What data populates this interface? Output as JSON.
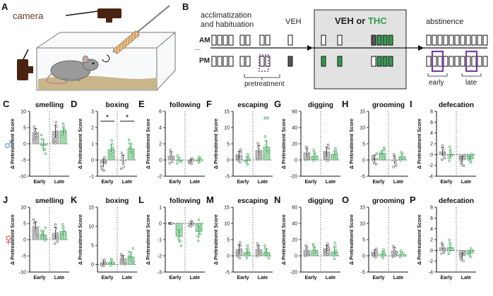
{
  "panel_a": {
    "letter": "A",
    "camera_label": "camera"
  },
  "panel_b": {
    "letter": "B",
    "acclimatization_line1": "acclimatization",
    "acclimatization_line2": "and habituation",
    "veh_label": "VEH",
    "treatment_veh": "VEH",
    "treatment_or": " or ",
    "treatment_thc": "THC",
    "abstinence_label": "abstinence",
    "am_label": "AM",
    "pm_label": "PM",
    "ellipsis": "...",
    "pretreatment_label": "pretreatment",
    "early_label": "early",
    "late_label": "late"
  },
  "sex_symbols": {
    "male": "♂",
    "female": "♀"
  },
  "colors": {
    "veh_gray": "#bdbdbd",
    "thc_green": "#2e9d4a",
    "thc_green_light": "#a6d8b0",
    "pretreatment_purple": "#7b3fa0",
    "camera_brown": "#4a2410",
    "bedding": "#c9b68a"
  },
  "chart_data": [
    {
      "panel": "C",
      "title": "smelling",
      "ylabel": "Δ Pretreatment Score",
      "ylim": [
        -10,
        10
      ],
      "yticks": [
        -10,
        -5,
        0,
        5,
        10
      ],
      "categories": [
        "Early",
        "Late"
      ],
      "series": [
        {
          "values": [
            3.5,
            3.8
          ]
        },
        {
          "values": [
            -0.5,
            4.0
          ]
        }
      ],
      "errors": [
        [
          1.2,
          2.0
        ],
        [
          1.8,
          1.2
        ]
      ],
      "annotations": []
    },
    {
      "panel": "D",
      "title": "boxing",
      "ylabel": "Δ Pretreatment Score",
      "ylim": [
        -1,
        3
      ],
      "yticks": [
        -1,
        0,
        1,
        2,
        3
      ],
      "categories": [
        "Early",
        "Late"
      ],
      "series": [
        {
          "values": [
            -0.2,
            0.0
          ]
        },
        {
          "values": [
            0.65,
            0.7
          ]
        }
      ],
      "errors": [
        [
          0.25,
          0.3
        ],
        [
          0.3,
          0.3
        ]
      ],
      "annotations": [
        "*",
        "*"
      ]
    },
    {
      "panel": "E",
      "title": "following",
      "ylabel": "Δ Pretreatment Score",
      "ylim": [
        -2,
        6
      ],
      "yticks": [
        -2,
        0,
        2,
        4,
        6
      ],
      "categories": [
        "Early",
        "Late"
      ],
      "series": [
        {
          "values": [
            0.5,
            -0.1
          ]
        },
        {
          "values": [
            0.0,
            0.0
          ]
        }
      ],
      "errors": [
        [
          0.5,
          0.2
        ],
        [
          0.3,
          0.2
        ]
      ],
      "annotations": []
    },
    {
      "panel": "F",
      "title": "escaping",
      "ylabel": "Δ Pretreatment Score",
      "ylim": [
        -5,
        15
      ],
      "yticks": [
        -5,
        0,
        5,
        10,
        15
      ],
      "categories": [
        "Early",
        "Late"
      ],
      "series": [
        {
          "values": [
            1.5,
            3.0
          ]
        },
        {
          "values": [
            0.0,
            4.0
          ]
        }
      ],
      "errors": [
        [
          1.2,
          1.5
        ],
        [
          1.0,
          1.8
        ]
      ],
      "annotations": [
        "##"
      ]
    },
    {
      "panel": "G",
      "title": "digging",
      "ylabel": "Δ Pretreatment Score",
      "ylim": [
        -20,
        60
      ],
      "yticks": [
        -20,
        0,
        20,
        40,
        60
      ],
      "categories": [
        "Early",
        "Late"
      ],
      "series": [
        {
          "values": [
            9,
            10
          ]
        },
        {
          "values": [
            5,
            7
          ]
        }
      ],
      "errors": [
        [
          5,
          6
        ],
        [
          4,
          4
        ]
      ],
      "annotations": []
    },
    {
      "panel": "H",
      "title": "grooming",
      "ylabel": "Δ Pretreatment Score",
      "ylim": [
        -5,
        15
      ],
      "yticks": [
        -5,
        0,
        5,
        10,
        15
      ],
      "categories": [
        "Early",
        "Late"
      ],
      "series": [
        {
          "values": [
            0.5,
            0.0
          ]
        },
        {
          "values": [
            2.0,
            1.0
          ]
        }
      ],
      "errors": [
        [
          1.0,
          1.2
        ],
        [
          1.0,
          0.8
        ]
      ],
      "annotations": []
    },
    {
      "panel": "I",
      "title": "defecation",
      "ylabel": "Δ Pretreatment Score",
      "ylim": [
        -4,
        8
      ],
      "yticks": [
        -4,
        -2,
        0,
        2,
        4,
        6,
        8
      ],
      "categories": [
        "Early",
        "Late"
      ],
      "series": [
        {
          "values": [
            0.5,
            -1.0
          ]
        },
        {
          "values": [
            0.0,
            -0.8
          ]
        }
      ],
      "errors": [
        [
          0.8,
          0.6
        ],
        [
          0.8,
          0.5
        ]
      ],
      "annotations": []
    },
    {
      "panel": "J",
      "title": "smelling",
      "ylabel": "Δ Pretreatment Score",
      "ylim": [
        -10,
        10
      ],
      "yticks": [
        -10,
        -5,
        0,
        5,
        10
      ],
      "categories": [
        "Early",
        "Late"
      ],
      "series": [
        {
          "values": [
            4.0,
            2.0
          ]
        },
        {
          "values": [
            1.5,
            2.5
          ]
        }
      ],
      "errors": [
        [
          1.5,
          1.8
        ],
        [
          1.2,
          1.2
        ]
      ],
      "annotations": []
    },
    {
      "panel": "K",
      "title": "boxing",
      "ylabel": "Δ Pretreatment Score",
      "ylim": [
        -2,
        15
      ],
      "yticks": [
        0,
        5,
        10,
        15
      ],
      "categories": [
        "Early",
        "Late"
      ],
      "series": [
        {
          "values": [
            0.5,
            1.5
          ]
        },
        {
          "values": [
            0.5,
            2.0
          ]
        }
      ],
      "errors": [
        [
          0.5,
          0.8
        ],
        [
          0.5,
          1.2
        ]
      ],
      "annotations": []
    },
    {
      "panel": "L",
      "title": "following",
      "ylabel": "Δ Pretreatment Score",
      "ylim": [
        -3,
        1
      ],
      "yticks": [
        -3,
        -2,
        -1,
        0,
        1
      ],
      "categories": [
        "Early",
        "Late"
      ],
      "series": [
        {
          "values": [
            0.0,
            0.0
          ]
        },
        {
          "values": [
            -0.8,
            -0.5
          ]
        }
      ],
      "errors": [
        [
          0.0,
          0.1
        ],
        [
          0.4,
          0.4
        ]
      ],
      "annotations": []
    },
    {
      "panel": "M",
      "title": "escaping",
      "ylabel": "Δ Pretreatment Score",
      "ylim": [
        -5,
        15
      ],
      "yticks": [
        -5,
        0,
        5,
        10,
        15
      ],
      "categories": [
        "Early",
        "Late"
      ],
      "series": [
        {
          "values": [
            2.0,
            2.0
          ]
        },
        {
          "values": [
            1.0,
            1.0
          ]
        }
      ],
      "errors": [
        [
          1.5,
          1.2
        ],
        [
          1.2,
          1.2
        ]
      ],
      "annotations": []
    },
    {
      "panel": "N",
      "title": "digging",
      "ylabel": "Δ Pretreatment Score",
      "ylim": [
        -20,
        60
      ],
      "yticks": [
        -20,
        0,
        20,
        40,
        60
      ],
      "categories": [
        "Early",
        "Late"
      ],
      "series": [
        {
          "values": [
            7,
            9
          ]
        },
        {
          "values": [
            7,
            5
          ]
        }
      ],
      "errors": [
        [
          4,
          4
        ],
        [
          4,
          6
        ]
      ],
      "annotations": []
    },
    {
      "panel": "O",
      "title": "grooming",
      "ylabel": "Δ Pretreatment Score",
      "ylim": [
        -5,
        15
      ],
      "yticks": [
        -5,
        0,
        5,
        10,
        15
      ],
      "categories": [
        "Early",
        "Late"
      ],
      "series": [
        {
          "values": [
            1.0,
            1.5
          ]
        },
        {
          "values": [
            0.5,
            0.5
          ]
        }
      ],
      "errors": [
        [
          0.8,
          1.0
        ],
        [
          0.8,
          0.6
        ]
      ],
      "annotations": []
    },
    {
      "panel": "P",
      "title": "defecation",
      "ylabel": "Δ Pretreatment Score",
      "ylim": [
        -4,
        8
      ],
      "yticks": [
        -4,
        -2,
        0,
        2,
        4,
        6,
        8
      ],
      "categories": [
        "Early",
        "Late"
      ],
      "series": [
        {
          "values": [
            0.5,
            -1.0
          ]
        },
        {
          "values": [
            0.5,
            -0.5
          ]
        }
      ],
      "errors": [
        [
          0.6,
          0.5
        ],
        [
          0.8,
          0.5
        ]
      ],
      "annotations": []
    }
  ]
}
